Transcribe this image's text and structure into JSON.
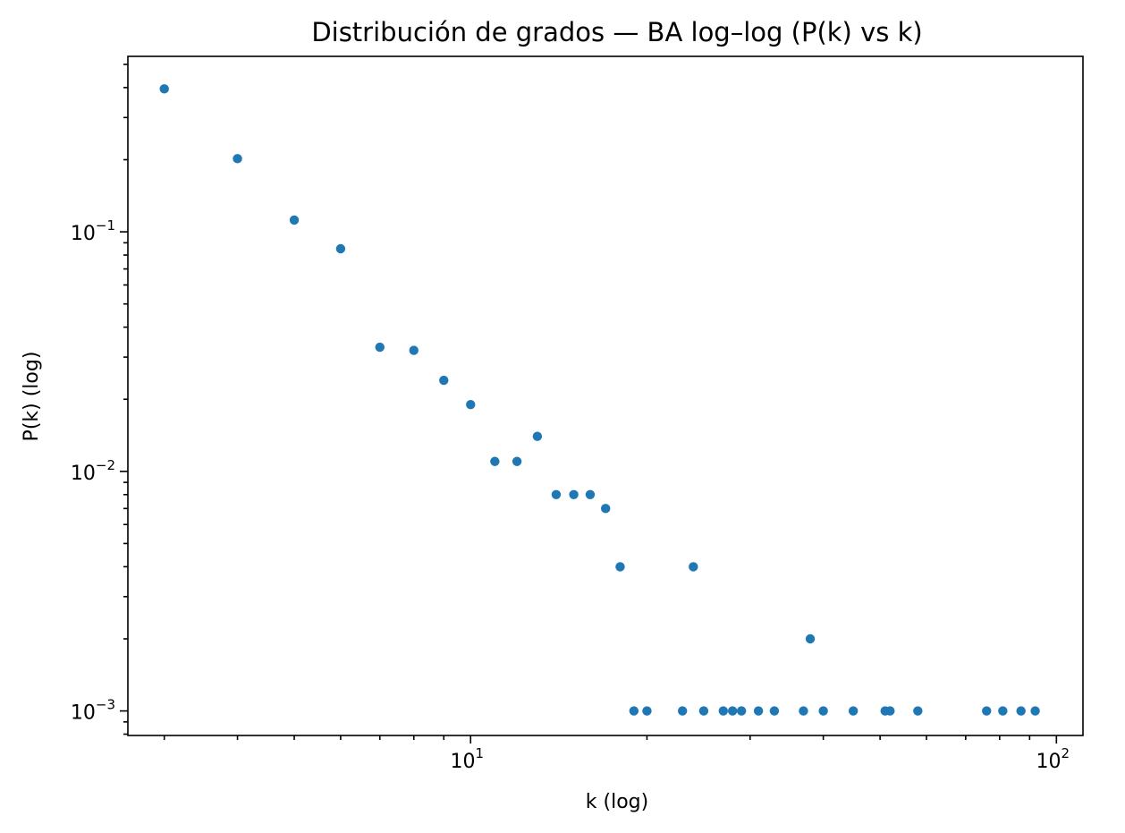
{
  "chart_data": {
    "type": "scatter",
    "title": "Distribución de grados — BA log–log (P(k) vs k)",
    "xlabel": "k (log)",
    "ylabel": "P(k) (log)",
    "xscale": "log",
    "yscale": "log",
    "xlim": [
      2.6,
      111
    ],
    "ylim": [
      0.00079,
      0.54
    ],
    "grid": false,
    "color": "#1f77b4",
    "x_ticks": [
      {
        "base": "10",
        "exp": "1",
        "value": 10
      },
      {
        "base": "10",
        "exp": "2",
        "value": 100
      }
    ],
    "y_ticks": [
      {
        "base": "10",
        "exp": "−1",
        "value": 0.1
      },
      {
        "base": "10",
        "exp": "−2",
        "value": 0.01
      },
      {
        "base": "10",
        "exp": "−3",
        "value": 0.001
      }
    ],
    "points": [
      {
        "x": 3,
        "y": 0.395
      },
      {
        "x": 4,
        "y": 0.202
      },
      {
        "x": 5,
        "y": 0.112
      },
      {
        "x": 6,
        "y": 0.085
      },
      {
        "x": 7,
        "y": 0.033
      },
      {
        "x": 8,
        "y": 0.032
      },
      {
        "x": 9,
        "y": 0.024
      },
      {
        "x": 10,
        "y": 0.019
      },
      {
        "x": 11,
        "y": 0.011
      },
      {
        "x": 12,
        "y": 0.011
      },
      {
        "x": 13,
        "y": 0.014
      },
      {
        "x": 14,
        "y": 0.008
      },
      {
        "x": 15,
        "y": 0.008
      },
      {
        "x": 16,
        "y": 0.008
      },
      {
        "x": 17,
        "y": 0.007
      },
      {
        "x": 18,
        "y": 0.004
      },
      {
        "x": 19,
        "y": 0.001
      },
      {
        "x": 20,
        "y": 0.001
      },
      {
        "x": 23,
        "y": 0.001
      },
      {
        "x": 24,
        "y": 0.004
      },
      {
        "x": 25,
        "y": 0.001
      },
      {
        "x": 27,
        "y": 0.001
      },
      {
        "x": 28,
        "y": 0.001
      },
      {
        "x": 29,
        "y": 0.001
      },
      {
        "x": 31,
        "y": 0.001
      },
      {
        "x": 33,
        "y": 0.001
      },
      {
        "x": 37,
        "y": 0.001
      },
      {
        "x": 38,
        "y": 0.002
      },
      {
        "x": 40,
        "y": 0.001
      },
      {
        "x": 45,
        "y": 0.001
      },
      {
        "x": 51,
        "y": 0.001
      },
      {
        "x": 52,
        "y": 0.001
      },
      {
        "x": 58,
        "y": 0.001
      },
      {
        "x": 76,
        "y": 0.001
      },
      {
        "x": 81,
        "y": 0.001
      },
      {
        "x": 87,
        "y": 0.001
      },
      {
        "x": 92,
        "y": 0.001
      }
    ]
  }
}
